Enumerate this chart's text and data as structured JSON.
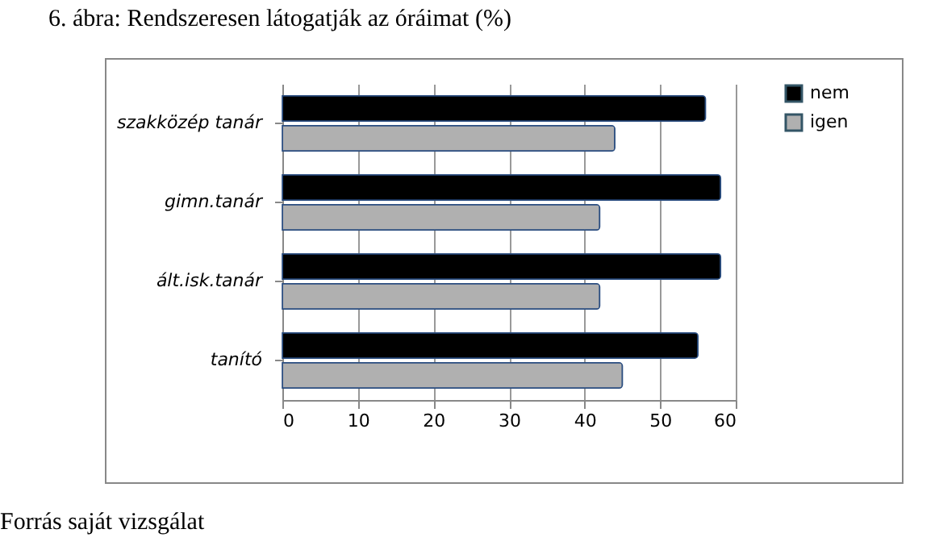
{
  "chart_data": {
    "type": "bar",
    "orientation": "horizontal",
    "title": "6.   ábra: Rendszeresen látogatják az óráimat (%)",
    "categories": [
      "szakközép tanár",
      "gimn.tanár",
      "ált.isk.tanár",
      "tanító"
    ],
    "series": [
      {
        "name": "nem",
        "color": "#000000",
        "values": [
          56,
          58,
          58,
          55
        ]
      },
      {
        "name": "igen",
        "color": "#b0b0b0",
        "values": [
          44,
          42,
          42,
          45
        ]
      }
    ],
    "xlim": [
      0,
      60
    ],
    "xticks": [
      0,
      10,
      20,
      30,
      40,
      50,
      60
    ],
    "grid": "x",
    "legend": "right",
    "annotations": [
      "Forrás saját vizsgálat"
    ]
  }
}
